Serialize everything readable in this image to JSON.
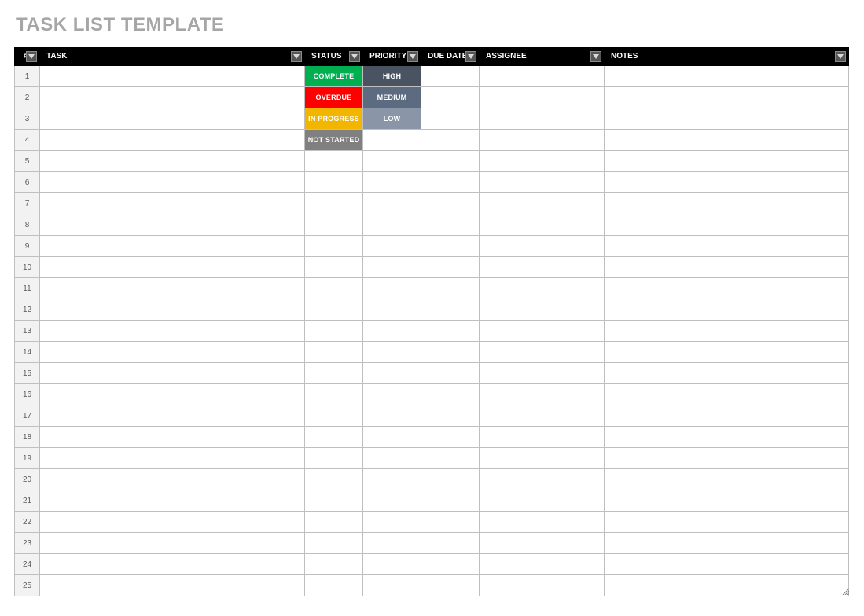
{
  "title": "TASK LIST TEMPLATE",
  "columns": [
    {
      "key": "num",
      "label": "#",
      "width_class": "c-num",
      "align": "left",
      "filter": true
    },
    {
      "key": "task",
      "label": "TASK",
      "width_class": "c-task",
      "align": "left",
      "filter": true
    },
    {
      "key": "status",
      "label": "STATUS",
      "width_class": "c-status",
      "align": "left",
      "filter": true
    },
    {
      "key": "priority",
      "label": "PRIORITY",
      "width_class": "c-priority",
      "align": "left",
      "filter": true
    },
    {
      "key": "due",
      "label": "DUE DATE",
      "width_class": "c-due",
      "align": "left",
      "filter": true
    },
    {
      "key": "assignee",
      "label": "ASSIGNEE",
      "width_class": "c-assignee",
      "align": "left",
      "filter": true
    },
    {
      "key": "notes",
      "label": "NOTES",
      "width_class": "c-notes",
      "align": "left",
      "filter": true
    }
  ],
  "row_count": 25,
  "rows": [
    {
      "num": 1,
      "task": "",
      "status": {
        "text": "COMPLETE",
        "bg": "#00b050"
      },
      "priority": {
        "text": "HIGH",
        "bg": "#4a5362"
      },
      "due": "",
      "assignee": "",
      "notes": ""
    },
    {
      "num": 2,
      "task": "",
      "status": {
        "text": "OVERDUE",
        "bg": "#ff0000"
      },
      "priority": {
        "text": "MEDIUM",
        "bg": "#5d6b80"
      },
      "due": "",
      "assignee": "",
      "notes": ""
    },
    {
      "num": 3,
      "task": "",
      "status": {
        "text": "IN PROGRESS",
        "bg": "#f2b600"
      },
      "priority": {
        "text": "LOW",
        "bg": "#8a96a8"
      },
      "due": "",
      "assignee": "",
      "notes": ""
    },
    {
      "num": 4,
      "task": "",
      "status": {
        "text": "NOT STARTED",
        "bg": "#808080"
      },
      "priority": null,
      "due": "",
      "assignee": "",
      "notes": ""
    },
    {
      "num": 5,
      "task": "",
      "status": null,
      "priority": null,
      "due": "",
      "assignee": "",
      "notes": ""
    },
    {
      "num": 6,
      "task": "",
      "status": null,
      "priority": null,
      "due": "",
      "assignee": "",
      "notes": ""
    },
    {
      "num": 7,
      "task": "",
      "status": null,
      "priority": null,
      "due": "",
      "assignee": "",
      "notes": ""
    },
    {
      "num": 8,
      "task": "",
      "status": null,
      "priority": null,
      "due": "",
      "assignee": "",
      "notes": ""
    },
    {
      "num": 9,
      "task": "",
      "status": null,
      "priority": null,
      "due": "",
      "assignee": "",
      "notes": ""
    },
    {
      "num": 10,
      "task": "",
      "status": null,
      "priority": null,
      "due": "",
      "assignee": "",
      "notes": ""
    },
    {
      "num": 11,
      "task": "",
      "status": null,
      "priority": null,
      "due": "",
      "assignee": "",
      "notes": ""
    },
    {
      "num": 12,
      "task": "",
      "status": null,
      "priority": null,
      "due": "",
      "assignee": "",
      "notes": ""
    },
    {
      "num": 13,
      "task": "",
      "status": null,
      "priority": null,
      "due": "",
      "assignee": "",
      "notes": ""
    },
    {
      "num": 14,
      "task": "",
      "status": null,
      "priority": null,
      "due": "",
      "assignee": "",
      "notes": ""
    },
    {
      "num": 15,
      "task": "",
      "status": null,
      "priority": null,
      "due": "",
      "assignee": "",
      "notes": ""
    },
    {
      "num": 16,
      "task": "",
      "status": null,
      "priority": null,
      "due": "",
      "assignee": "",
      "notes": ""
    },
    {
      "num": 17,
      "task": "",
      "status": null,
      "priority": null,
      "due": "",
      "assignee": "",
      "notes": ""
    },
    {
      "num": 18,
      "task": "",
      "status": null,
      "priority": null,
      "due": "",
      "assignee": "",
      "notes": ""
    },
    {
      "num": 19,
      "task": "",
      "status": null,
      "priority": null,
      "due": "",
      "assignee": "",
      "notes": ""
    },
    {
      "num": 20,
      "task": "",
      "status": null,
      "priority": null,
      "due": "",
      "assignee": "",
      "notes": ""
    },
    {
      "num": 21,
      "task": "",
      "status": null,
      "priority": null,
      "due": "",
      "assignee": "",
      "notes": ""
    },
    {
      "num": 22,
      "task": "",
      "status": null,
      "priority": null,
      "due": "",
      "assignee": "",
      "notes": ""
    },
    {
      "num": 23,
      "task": "",
      "status": null,
      "priority": null,
      "due": "",
      "assignee": "",
      "notes": ""
    },
    {
      "num": 24,
      "task": "",
      "status": null,
      "priority": null,
      "due": "",
      "assignee": "",
      "notes": ""
    },
    {
      "num": 25,
      "task": "",
      "status": null,
      "priority": null,
      "due": "",
      "assignee": "",
      "notes": ""
    }
  ],
  "colors": {
    "header_bg": "#000000",
    "header_text": "#ffffff",
    "grid_border": "#bfbfbf",
    "rownum_bg": "#f2f2f2",
    "rownum_text": "#595959",
    "title_text": "#a6a6a6",
    "filter_btn_bg": "#555555",
    "filter_btn_border": "#8a8a8a"
  }
}
